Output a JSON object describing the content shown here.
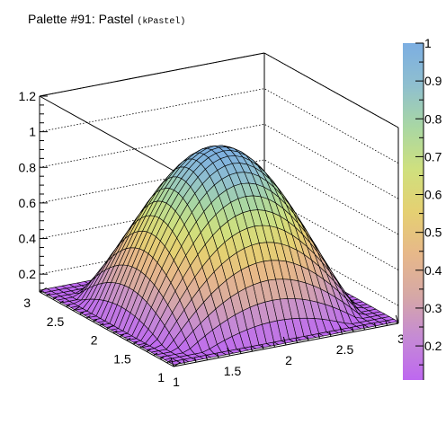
{
  "title": "Palette #91: Pastel",
  "title_suffix": "(kPastel)",
  "chart_data": {
    "type": "surface",
    "title": "Palette #91: Pastel (kPastel)",
    "function": "sin(pi*(x-1)/2) * sin(pi*(y-1)/2), sampled on a 30x30 grid",
    "x_range": [
      1,
      3
    ],
    "y_range": [
      1,
      3
    ],
    "z_range": [
      0.1,
      1.0
    ],
    "z_axis_range": [
      0.1,
      1.2
    ],
    "grid_size": 30,
    "x_tick_labels": [
      "1",
      "1.5",
      "2",
      "2.5",
      "3"
    ],
    "y_tick_labels": [
      "1",
      "1.5",
      "2",
      "2.5",
      "3"
    ],
    "z_tick_labels": [
      "0.2",
      "0.4",
      "0.6",
      "0.8",
      "1",
      "1.2"
    ],
    "colorbar_tick_labels": [
      "0.2",
      "0.3",
      "0.4",
      "0.5",
      "0.6",
      "0.7",
      "0.8",
      "0.9",
      "1"
    ],
    "colorbar_range": [
      0.11,
      1.0
    ],
    "palette": [
      "#be68f0",
      "#c58ad5",
      "#d6a8a6",
      "#e7b889",
      "#e5d072",
      "#cfe07e",
      "#a9d7a3",
      "#8fbfcf",
      "#7caee2"
    ],
    "grid": true,
    "legend": "colorbar-right"
  }
}
